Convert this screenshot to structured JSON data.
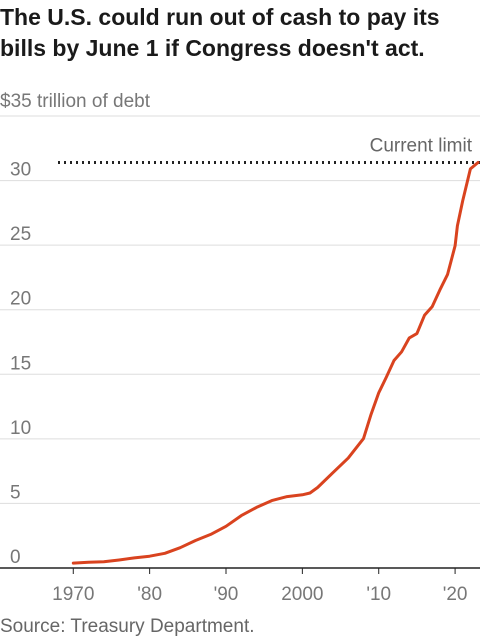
{
  "title": "The U.S. could run out of cash to pay its bills by June 1 if Congress doesn't act.",
  "source": "Source: Treasury Department.",
  "colors": {
    "line": "#d9431f",
    "grid": "#dddddd",
    "axis": "#222222",
    "limit": "#222222",
    "text": "#777777"
  },
  "chart_data": {
    "type": "line",
    "ylabel": "$35 trillion of debt",
    "y_ticks": [
      0,
      5,
      10,
      15,
      20,
      25,
      30,
      35
    ],
    "y_tick_labels": [
      "0",
      "5",
      "10",
      "15",
      "20",
      "25",
      "30"
    ],
    "ylim": [
      0,
      35
    ],
    "xlim": [
      1968,
      2023
    ],
    "x_ticks": [
      1970,
      1980,
      1990,
      2000,
      2010,
      2020
    ],
    "x_tick_labels": [
      "1970",
      "'80",
      "'90",
      "2000",
      "'10",
      "'20"
    ],
    "annotation": {
      "label": "Current limit",
      "value": 31.4
    },
    "x": [
      1970,
      1972,
      1974,
      1976,
      1978,
      1980,
      1982,
      1984,
      1986,
      1988,
      1990,
      1992,
      1994,
      1996,
      1998,
      2000,
      2001,
      2002,
      2004,
      2006,
      2008,
      2009,
      2010,
      2011,
      2012,
      2013,
      2014,
      2015,
      2016,
      2017,
      2018,
      2019,
      2020,
      2020.3,
      2021,
      2022,
      2023
    ],
    "y": [
      0.38,
      0.44,
      0.48,
      0.62,
      0.78,
      0.91,
      1.14,
      1.57,
      2.13,
      2.6,
      3.23,
      4.06,
      4.69,
      5.22,
      5.53,
      5.67,
      5.81,
      6.23,
      7.38,
      8.51,
      10.02,
      11.91,
      13.56,
      14.79,
      16.07,
      16.74,
      17.82,
      18.15,
      19.57,
      20.24,
      21.52,
      22.72,
      24.95,
      26.5,
      28.43,
      30.9,
      31.4
    ]
  }
}
